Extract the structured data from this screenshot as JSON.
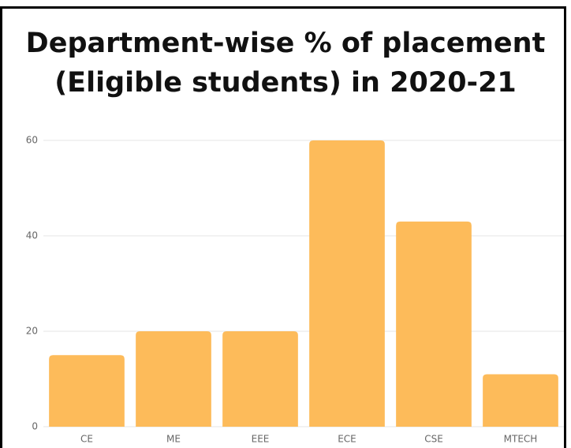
{
  "chart_data": {
    "type": "bar",
    "title": "Department-wise % of placement (Eligible students) in 2020-21",
    "categories": [
      "CE",
      "ME",
      "EEE",
      "ECE",
      "CSE",
      "MTECH"
    ],
    "values": [
      15,
      20,
      20,
      60,
      43,
      11
    ],
    "color": "#fdbb5a",
    "ylim": [
      0,
      60
    ],
    "yticks": [
      0,
      20,
      40,
      60
    ],
    "grid": true
  }
}
